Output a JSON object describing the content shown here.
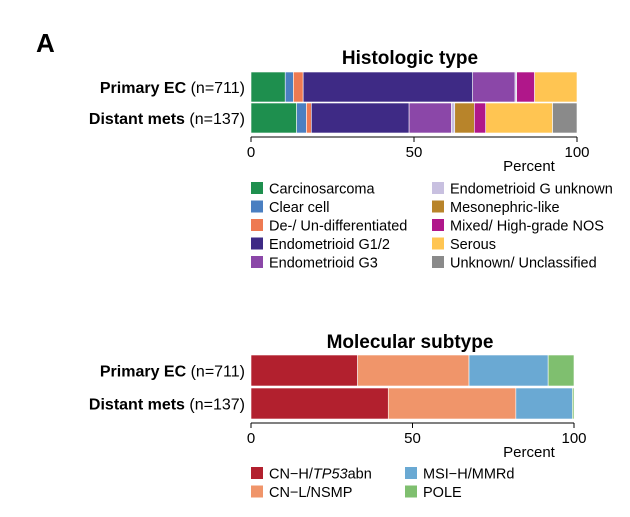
{
  "panel_label": "A",
  "chart_data": [
    {
      "type": "bar",
      "orientation": "horizontal-stacked-100",
      "title": "Histologic type",
      "xlabel": "Percent",
      "xlim": [
        0,
        100
      ],
      "xticks": [
        "0",
        "50",
        "100"
      ],
      "categories": [
        {
          "name": "Primary EC",
          "n": "(n=711)"
        },
        {
          "name": "Distant mets",
          "n": "(n=137)"
        }
      ],
      "series": [
        {
          "name": "Carcinosarcoma",
          "color": "#1e8f4e",
          "values": [
            10.5,
            14.0
          ]
        },
        {
          "name": "Clear cell",
          "color": "#4a7fc1",
          "values": [
            2.5,
            3.0
          ]
        },
        {
          "name": "De-/ Un-differentiated",
          "color": "#ee7a52",
          "values": [
            3.0,
            1.5
          ]
        },
        {
          "name": "Endometrioid G1/2",
          "color": "#3e2a85",
          "values": [
            52.0,
            30.0
          ]
        },
        {
          "name": "Endometrioid G3",
          "color": "#8b47a8",
          "values": [
            13.0,
            13.0
          ]
        },
        {
          "name": "Endometrioid G unknown",
          "color": "#c8c0e0",
          "values": [
            0.5,
            1.0
          ]
        },
        {
          "name": "Mesonephric-like",
          "color": "#b8842a",
          "values": [
            0.0,
            6.0
          ]
        },
        {
          "name": "Mixed/ High-grade NOS",
          "color": "#b0178a",
          "values": [
            5.5,
            3.5
          ]
        },
        {
          "name": "Serous",
          "color": "#ffc552",
          "values": [
            13.0,
            20.5
          ]
        },
        {
          "name": "Unknown/ Unclassified",
          "color": "#8a8a8a",
          "values": [
            0.0,
            7.5
          ]
        }
      ]
    },
    {
      "type": "bar",
      "orientation": "horizontal-stacked-100",
      "title": "Molecular subtype",
      "xlabel": "Percent",
      "xlim": [
        0,
        100
      ],
      "xticks": [
        "0",
        "50",
        "100"
      ],
      "categories": [
        {
          "name": "Primary EC",
          "n": "(n=711)"
        },
        {
          "name": "Distant mets",
          "n": "(n=137)"
        }
      ],
      "series": [
        {
          "name": "CN−H/TP53abn",
          "label_prefix": "CN−H/",
          "label_italic": "TP53",
          "label_suffix": "abn",
          "color": "#b2202e",
          "values": [
            33.0,
            42.5
          ]
        },
        {
          "name": "CN−L/NSMP",
          "color": "#f0956a",
          "values": [
            34.5,
            39.5
          ]
        },
        {
          "name": "MSI−H/MMRd",
          "color": "#6aa9d3",
          "values": [
            24.5,
            17.5
          ]
        },
        {
          "name": "POLE",
          "color": "#7fbf6f",
          "values": [
            8.0,
            0.5
          ]
        }
      ]
    }
  ]
}
